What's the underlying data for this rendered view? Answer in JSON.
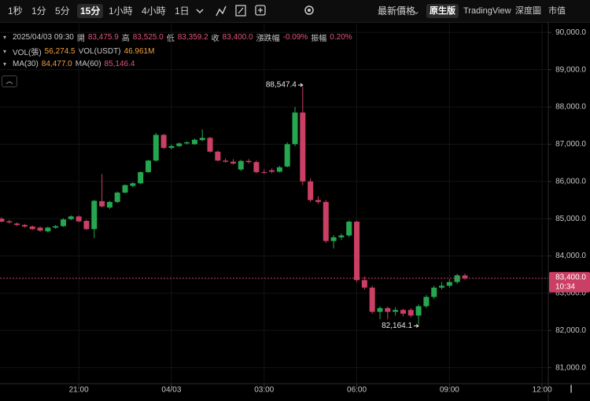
{
  "toolbar": {
    "intervals": [
      "1秒",
      "1分",
      "5分",
      "15分",
      "1小時",
      "4小時",
      "1日"
    ],
    "selected_interval": 3,
    "price_mode": "最新價格",
    "views": [
      "原生版",
      "TradingView",
      "深度圖",
      "市值"
    ],
    "selected_view": 0
  },
  "info": {
    "datetime": "2025/04/03 09:30",
    "ohlc": [
      {
        "label": "開",
        "value": "83,475.9"
      },
      {
        "label": "高",
        "value": "83,525.0"
      },
      {
        "label": "低",
        "value": "83,359.2"
      },
      {
        "label": "收",
        "value": "83,400.0"
      },
      {
        "label": "漲跌幅",
        "value": "-0.09%"
      },
      {
        "label": "振幅",
        "value": "0.20%"
      }
    ],
    "volume": [
      {
        "label": "VOL(張)",
        "value": "56,274.5"
      },
      {
        "label": "VOL(USDT)",
        "value": "46.961M"
      }
    ],
    "ma": [
      {
        "label": "MA(30)",
        "value": "84,477.0"
      },
      {
        "label": "MA(60)",
        "value": "85,146.4"
      }
    ]
  },
  "chart_data": {
    "type": "candlestick",
    "up_color": "#25a750",
    "down_color": "#ca3f64",
    "grid": true,
    "x": [
      18.5,
      18.75,
      19,
      19.25,
      19.5,
      19.75,
      20,
      20.25,
      20.5,
      20.75,
      21,
      21.25,
      21.5,
      21.75,
      22,
      22.25,
      22.5,
      22.75,
      23,
      23.25,
      23.5,
      23.75,
      24,
      24.25,
      24.5,
      24.75,
      25,
      25.25,
      25.5,
      25.75,
      26,
      26.25,
      26.5,
      26.75,
      27,
      27.25,
      27.5,
      27.75,
      28,
      28.25,
      28.5,
      28.75,
      29,
      29.25,
      29.5,
      29.75,
      30,
      30.25,
      30.5,
      30.75,
      31,
      31.25,
      31.5,
      31.75,
      32,
      32.25,
      32.5,
      32.75,
      33,
      33.25,
      33.5
    ],
    "open": [
      85000,
      84930,
      84870,
      84830,
      84790,
      84760,
      84660,
      84760,
      84800,
      84990,
      85060,
      84940,
      84720,
      85470,
      85300,
      85450,
      85700,
      85880,
      85950,
      86250,
      86560,
      87250,
      86900,
      86950,
      87020,
      87000,
      87110,
      87170,
      86800,
      86560,
      86530,
      86320,
      86550,
      86520,
      86250,
      86300,
      86260,
      86400,
      87000,
      87850,
      86000,
      85500,
      85450,
      84400,
      84500,
      84550,
      84920,
      83350,
      83150,
      82500,
      82600,
      82500,
      82550,
      82550,
      82400,
      82650,
      82900,
      83150,
      83200,
      83300,
      83475.9
    ],
    "high": [
      85040,
      84970,
      84900,
      84860,
      84820,
      84790,
      84790,
      84830,
      85010,
      85090,
      85090,
      84970,
      85500,
      86200,
      85480,
      85730,
      85920,
      85980,
      86270,
      86580,
      87300,
      87280,
      86990,
      87050,
      87080,
      87150,
      87400,
      87200,
      86830,
      86620,
      86600,
      86580,
      86600,
      86560,
      86320,
      86350,
      86420,
      87050,
      88000,
      88547.4,
      86080,
      85600,
      85500,
      84560,
      84600,
      84950,
      84950,
      83450,
      83200,
      82650,
      82640,
      82620,
      82580,
      82600,
      82700,
      82950,
      83200,
      83300,
      83380,
      83520,
      83525
    ],
    "low": [
      84900,
      84870,
      84800,
      84760,
      84700,
      84650,
      84630,
      84730,
      84780,
      84960,
      84900,
      84700,
      84480,
      85300,
      85260,
      85420,
      85680,
      85850,
      85920,
      86230,
      86530,
      86870,
      86860,
      86920,
      86990,
      86980,
      87080,
      86770,
      86540,
      86500,
      86450,
      86280,
      86480,
      86220,
      86200,
      86220,
      86240,
      86380,
      86950,
      85900,
      85450,
      85400,
      84350,
      84200,
      84430,
      84500,
      83300,
      83100,
      82450,
      82300,
      82300,
      82400,
      82380,
      82350,
      82164.1,
      82600,
      82850,
      83100,
      83150,
      83250,
      83359.2
    ],
    "close": [
      84920,
      84900,
      84830,
      84790,
      84720,
      84680,
      84760,
      84800,
      84980,
      85060,
      84930,
      84720,
      85480,
      85330,
      85450,
      85700,
      85900,
      85950,
      86250,
      86560,
      87250,
      86900,
      86950,
      87020,
      87050,
      87120,
      87170,
      86800,
      86560,
      86530,
      86480,
      86550,
      86520,
      86250,
      86230,
      86260,
      86380,
      87000,
      87850,
      86000,
      85500,
      85450,
      84400,
      84500,
      84550,
      84920,
      83350,
      83150,
      82500,
      82600,
      82500,
      82550,
      82450,
      82400,
      82650,
      82900,
      83150,
      83200,
      83300,
      83480,
      83400
    ],
    "xlim": [
      18.45,
      36.2
    ],
    "xticks": [
      {
        "value": 21,
        "label": "21:00"
      },
      {
        "value": 24,
        "label": "04/03"
      },
      {
        "value": 27,
        "label": "03:00"
      },
      {
        "value": 30,
        "label": "06:00"
      },
      {
        "value": 33,
        "label": "09:00"
      },
      {
        "value": 36,
        "label": "12:00"
      }
    ],
    "ylim": [
      80570,
      90280
    ],
    "yticks": [
      {
        "value": 81000,
        "label": "81,000.0"
      },
      {
        "value": 82000,
        "label": "82,000.0"
      },
      {
        "value": 83000,
        "label": "83,000.0"
      },
      {
        "value": 84000,
        "label": "84,000.0"
      },
      {
        "value": 85000,
        "label": "85,000.0"
      },
      {
        "value": 86000,
        "label": "86,000.0"
      },
      {
        "value": 87000,
        "label": "87,000.0"
      },
      {
        "value": 88000,
        "label": "88,000.0"
      },
      {
        "value": 89000,
        "label": "89,000.0"
      },
      {
        "value": 90000,
        "label": "90,000.0"
      }
    ],
    "annotations": [
      {
        "x": 28.25,
        "value": 88547.4,
        "label": "88,547.4"
      },
      {
        "x": 32,
        "value": 82164.1,
        "label": "82,164.1"
      }
    ],
    "last_price": {
      "value": 83400,
      "label": "83,400.0",
      "countdown": "10:34"
    }
  }
}
